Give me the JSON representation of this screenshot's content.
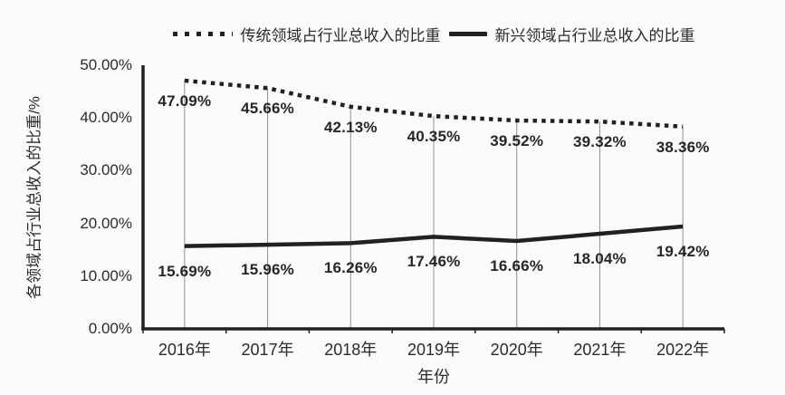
{
  "chart_data": {
    "type": "line",
    "title": "",
    "x": [
      "2016年",
      "2017年",
      "2018年",
      "2019年",
      "2020年",
      "2021年",
      "2022年"
    ],
    "series": [
      {
        "name": "传统领域占行业总收入的比重",
        "style": "dotted",
        "values": [
          47.09,
          45.66,
          42.13,
          40.35,
          39.52,
          39.32,
          38.36
        ],
        "labels": [
          "47.09%",
          "45.66%",
          "42.13%",
          "40.35%",
          "39.52%",
          "39.32%",
          "38.36%"
        ]
      },
      {
        "name": "新兴领域占行业总收入的比重",
        "style": "solid",
        "values": [
          15.69,
          15.96,
          16.26,
          17.46,
          16.66,
          18.04,
          19.42
        ],
        "labels": [
          "15.69%",
          "15.96%",
          "16.26%",
          "17.46%",
          "16.66%",
          "18.04%",
          "19.42%"
        ]
      }
    ],
    "xlabel": "年份",
    "ylabel": "各领域占行业总收入的比重/%",
    "ylim": [
      0,
      50
    ],
    "yticks": [
      "0.00%",
      "10.00%",
      "20.00%",
      "30.00%",
      "40.00%",
      "50.00%"
    ],
    "grid": "vertical drop-lines at each category from dotted series down to x-axis",
    "legend_position": "top-center"
  },
  "colors": {
    "line": "#212121",
    "dropline": "#909090",
    "text": "#2b2b2b",
    "background": "#fbfbfa"
  }
}
